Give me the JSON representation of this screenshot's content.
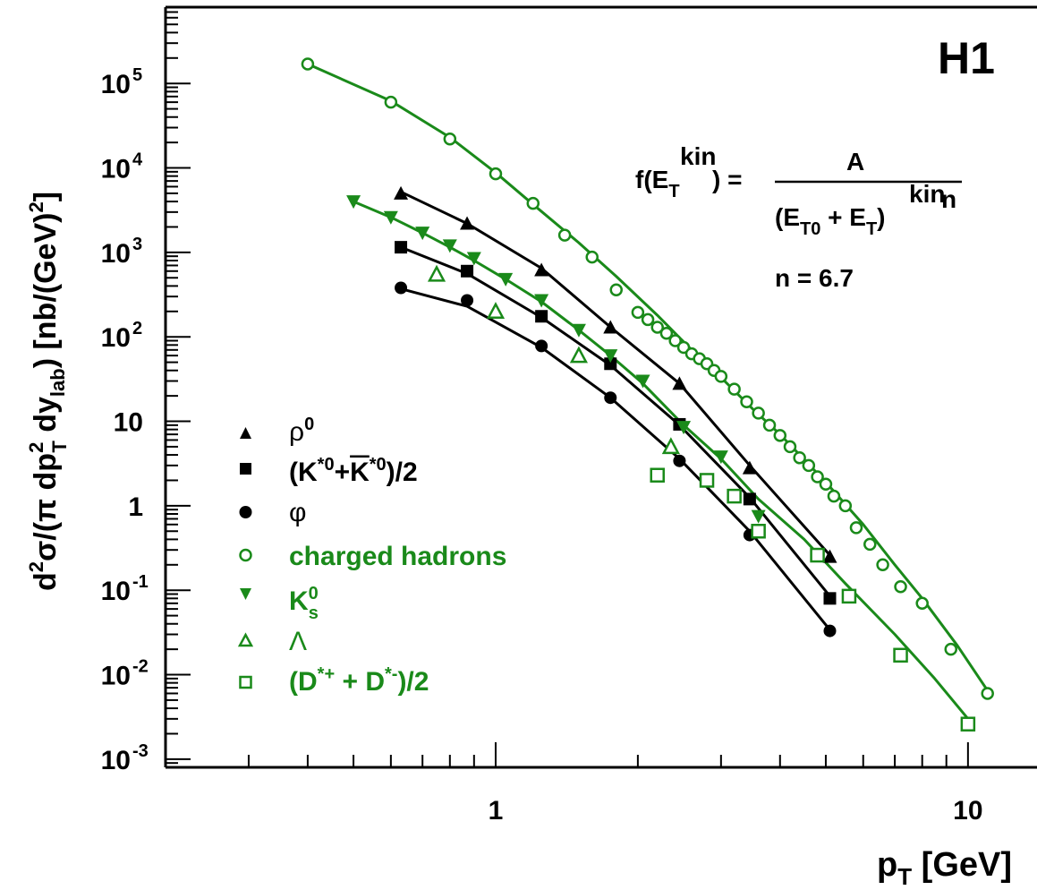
{
  "chart_data": {
    "type": "scatter",
    "badge": "H1",
    "xlabel": "p",
    "xlabel_sub": "T",
    "xlabel_unit": " [GeV]",
    "ylabel": "d²σ/(π dp²T dylab) [nb/(GeV)²]",
    "xscale": "log",
    "yscale": "log",
    "xlim": [
      0.2,
      14
    ],
    "ylim": [
      0.0008,
      800000
    ],
    "x_tick_labels": [
      "1",
      "10"
    ],
    "y_tick_labels": [
      {
        "base": "10",
        "exp": "-3",
        "value": 0.001
      },
      {
        "base": "10",
        "exp": "-2",
        "value": 0.01
      },
      {
        "base": "10",
        "exp": "-1",
        "value": 0.1
      },
      {
        "base": "1",
        "exp": "",
        "value": 1
      },
      {
        "base": "10",
        "exp": "",
        "value": 10
      },
      {
        "base": "10",
        "exp": "2",
        "value": 100
      },
      {
        "base": "10",
        "exp": "3",
        "value": 1000
      },
      {
        "base": "10",
        "exp": "4",
        "value": 10000
      },
      {
        "base": "10",
        "exp": "5",
        "value": 100000
      }
    ],
    "formula": {
      "lhs": "f(E",
      "lhs_sub": "T",
      "lhs_sup": "kin",
      "lhs_end": ") =",
      "numerator": "A",
      "den_start": "(E",
      "den_sub0": "T0",
      "den_plus": " + E",
      "den_sub": "T",
      "den_sup": "kin",
      "den_end": ")",
      "den_exp": "n",
      "n_text": "n = 6.7"
    },
    "legend_position": "bottom-left",
    "series": [
      {
        "name": "ρ⁰",
        "marker": "triangle-up",
        "filled": true,
        "color": "#000000",
        "x": [
          0.63,
          0.87,
          1.25,
          1.75,
          2.45,
          3.45,
          5.1
        ],
        "y": [
          5000,
          2200,
          620,
          130,
          28,
          2.8,
          0.25
        ]
      },
      {
        "name": "(K*⁰+K̄*⁰)/2",
        "marker": "square",
        "filled": true,
        "color": "#000000",
        "x": [
          0.63,
          0.87,
          1.25,
          1.75,
          2.45,
          3.45,
          5.1
        ],
        "y": [
          1150,
          600,
          175,
          48,
          9.2,
          1.2,
          0.08
        ]
      },
      {
        "name": "φ",
        "marker": "circle",
        "filled": true,
        "color": "#000000",
        "x": [
          0.63,
          0.87,
          1.25,
          1.75,
          2.45,
          3.45,
          5.1
        ],
        "y": [
          380,
          270,
          78,
          19,
          3.4,
          0.45,
          0.033
        ]
      },
      {
        "name": "charged hadrons",
        "marker": "circle",
        "filled": false,
        "color": "#1a8a1a",
        "x": [
          0.4,
          0.6,
          0.8,
          1.0,
          1.2,
          1.4,
          1.6,
          1.8,
          2.0,
          2.1,
          2.2,
          2.3,
          2.4,
          2.5,
          2.6,
          2.7,
          2.8,
          2.9,
          3.0,
          3.2,
          3.4,
          3.6,
          3.8,
          4.0,
          4.2,
          4.4,
          4.6,
          4.8,
          5.0,
          5.2,
          5.5,
          5.8,
          6.2,
          6.6,
          7.2,
          8.0,
          9.2,
          11.0
        ],
        "y": [
          170000,
          60000,
          22000,
          8500,
          3800,
          1600,
          880,
          360,
          195,
          160,
          130,
          110,
          90,
          75,
          63,
          55,
          48,
          40,
          34,
          24,
          17,
          12.5,
          9,
          6.8,
          5,
          3.7,
          3,
          2.2,
          1.8,
          1.3,
          1.0,
          0.55,
          0.35,
          0.2,
          0.11,
          0.07,
          0.02,
          0.006
        ]
      },
      {
        "name": "K⁰s",
        "marker": "triangle-down",
        "filled": true,
        "color": "#1a8a1a",
        "x": [
          0.5,
          0.6,
          0.7,
          0.8,
          0.9,
          1.05,
          1.25,
          1.5,
          1.75,
          2.05,
          2.5,
          3.0,
          3.6
        ],
        "y": [
          4000,
          2600,
          1700,
          1200,
          850,
          480,
          270,
          120,
          60,
          30,
          8.5,
          3.8,
          0.75
        ]
      },
      {
        "name": "Λ",
        "marker": "triangle-up",
        "filled": false,
        "color": "#1a8a1a",
        "x": [
          0.75,
          1.0,
          1.5,
          2.35
        ],
        "y": [
          550,
          200,
          60,
          5
        ]
      },
      {
        "name": "(D*⁺ + D*⁻)/2",
        "marker": "square",
        "filled": false,
        "color": "#1a8a1a",
        "x": [
          2.2,
          2.8,
          3.2,
          3.6,
          4.8,
          5.6,
          7.2,
          10.0
        ],
        "y": [
          2.3,
          2.0,
          1.3,
          0.5,
          0.26,
          0.085,
          0.017,
          0.0026
        ]
      }
    ],
    "fits": [
      {
        "color": "#000000",
        "x": [
          0.63,
          0.87,
          1.25,
          1.75,
          2.45,
          3.45,
          5.1
        ],
        "y": [
          5200,
          2200,
          650,
          130,
          28,
          3.0,
          0.26
        ]
      },
      {
        "color": "#000000",
        "x": [
          0.63,
          0.87,
          1.25,
          1.75,
          2.45,
          3.45,
          5.1
        ],
        "y": [
          1150,
          560,
          170,
          46,
          9.0,
          1.25,
          0.085
        ]
      },
      {
        "color": "#000000",
        "x": [
          0.63,
          0.87,
          1.25,
          1.75,
          2.45,
          3.45,
          5.1
        ],
        "y": [
          370,
          230,
          75,
          19,
          3.6,
          0.5,
          0.034
        ]
      },
      {
        "color": "#1a8a1a",
        "x": [
          0.4,
          0.6,
          0.8,
          1.0,
          1.2,
          1.5,
          1.8,
          2.2,
          2.6,
          3.0,
          3.5,
          4.0,
          5.0,
          6.0,
          7.0,
          8.0,
          9.5,
          11.0
        ],
        "y": [
          170000,
          62000,
          23000,
          8800,
          3700,
          1300,
          520,
          180,
          70,
          33,
          14,
          7.0,
          1.9,
          0.6,
          0.2,
          0.08,
          0.022,
          0.0065
        ]
      },
      {
        "color": "#1a8a1a",
        "x": [
          0.5,
          0.6,
          0.7,
          0.8,
          0.9,
          1.05,
          1.25,
          1.5,
          1.75,
          2.05,
          2.5,
          3.0,
          3.6,
          4.5,
          5.5,
          7.0,
          8.5,
          10.0
        ],
        "y": [
          4000,
          2600,
          1700,
          1150,
          800,
          480,
          260,
          120,
          60,
          28,
          9.0,
          3.6,
          1.2,
          0.4,
          0.12,
          0.03,
          0.009,
          0.003
        ]
      }
    ]
  }
}
